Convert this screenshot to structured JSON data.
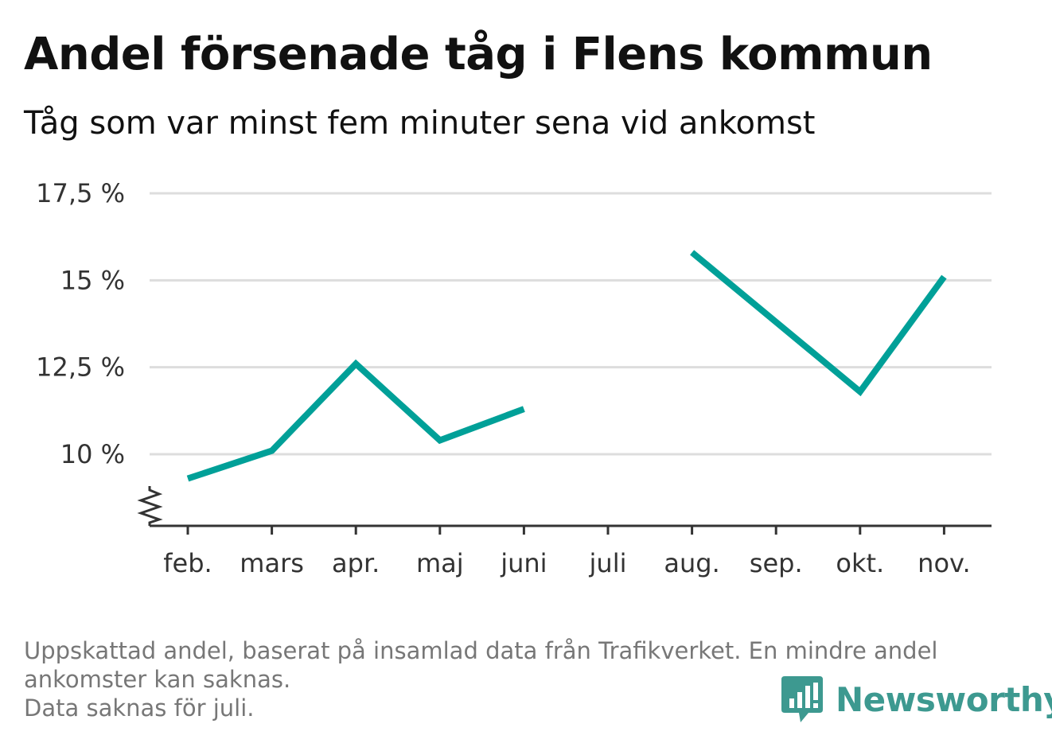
{
  "header": {
    "title": "Andel försenade tåg i Flens kommun",
    "subtitle": "Tåg som var minst fem minuter sena vid ankomst"
  },
  "chart_data": {
    "type": "line",
    "categories": [
      "feb.",
      "mars",
      "apr.",
      "maj",
      "juni",
      "juli",
      "aug.",
      "sep.",
      "okt.",
      "nov."
    ],
    "series": [
      {
        "values": [
          9.3,
          10.1,
          12.6,
          10.4,
          11.3,
          null,
          15.8,
          13.8,
          11.8,
          15.1
        ]
      }
    ],
    "yticks": [
      10,
      12.5,
      15,
      17.5
    ],
    "ytick_labels": [
      "10 %",
      "12,5 %",
      "15 %",
      "17,5 %"
    ],
    "ylim": [
      8.0,
      17.5
    ],
    "axis_break": true,
    "grid": true,
    "line_color": "#00a098",
    "grid_color": "#dddddd",
    "axis_color": "#333333"
  },
  "footer": {
    "note_line1": "Uppskattad andel, baserat på insamlad data från Trafikverket. En mindre andel",
    "note_line2": "ankomster kan saknas.",
    "note_line3": "Data saknas för juli.",
    "brand": "Newsworthy",
    "brand_color": "#3d9990",
    "brand_icon": "bar-chart-speech-bubble-icon"
  }
}
